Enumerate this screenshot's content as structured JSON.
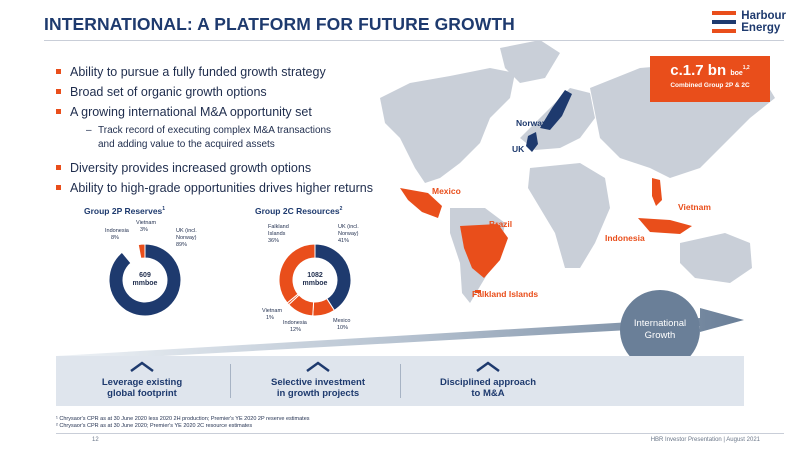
{
  "title": "INTERNATIONAL: A PLATFORM FOR FUTURE GROWTH",
  "logo": {
    "line1": "Harbour",
    "line2": "Energy"
  },
  "bullets": [
    "Ability to pursue a fully funded growth strategy",
    "Broad set of organic growth options",
    "A growing international M&A opportunity set",
    "Diversity provides increased growth options",
    "Ability to high-grade opportunities drives higher returns"
  ],
  "sub_bullet": {
    "dash": "–",
    "line1": "Track record of executing complex M&A transactions",
    "line2": "and adding value to the acquired assets"
  },
  "callout": {
    "value": "c.1.7 bn",
    "unit": "boe",
    "sup": "1,2",
    "caption": "Combined Group 2P & 2C"
  },
  "map_labels": {
    "norway": "Norway",
    "uk": "UK",
    "mexico": "Mexico",
    "brazil": "Brazil",
    "vietnam": "Vietnam",
    "indonesia": "Indonesia",
    "falklands": "Falkland Islands"
  },
  "colors": {
    "navy": "#1e3a6e",
    "orange": "#e94e1b",
    "map_grey": "#c9cfd8",
    "band": "#dfe5ed",
    "growth": "#6a7f98"
  },
  "chart_data": [
    {
      "type": "pie",
      "title": "Group 2P Reserves",
      "title_sup": "1",
      "center_value": "609",
      "center_unit": "mmboe",
      "slices": [
        {
          "label_line1": "UK (incl.",
          "label_line2": "Norway)",
          "pct_text": "89%",
          "value": 89,
          "color": "#1e3a6e"
        },
        {
          "label_line1": "Indonesia",
          "label_line2": "",
          "pct_text": "8%",
          "value": 8,
          "color": "#ffffff"
        },
        {
          "label_line1": "Vietnam",
          "label_line2": "",
          "pct_text": "3%",
          "value": 3,
          "color": "#e94e1b"
        }
      ]
    },
    {
      "type": "pie",
      "title": "Group 2C Resources",
      "title_sup": "2",
      "center_value": "1082",
      "center_unit": "mmboe",
      "slices": [
        {
          "label_line1": "UK (incl.",
          "label_line2": "Norway)",
          "pct_text": "41%",
          "value": 41,
          "color": "#1e3a6e"
        },
        {
          "label_line1": "Mexico",
          "label_line2": "",
          "pct_text": "10%",
          "value": 10,
          "color": "#e94e1b"
        },
        {
          "label_line1": "Indonesia",
          "label_line2": "",
          "pct_text": "12%",
          "value": 12,
          "color": "#e94e1b"
        },
        {
          "label_line1": "Vietnam",
          "label_line2": "",
          "pct_text": "1%",
          "value": 1,
          "color": "#e94e1b"
        },
        {
          "label_line1": "Falkland",
          "label_line2": "Islands",
          "pct_text": "36%",
          "value": 36,
          "color": "#e94e1b"
        }
      ]
    }
  ],
  "growth_circle": {
    "line1": "International",
    "line2": "Growth"
  },
  "pillars": [
    {
      "line1": "Leverage existing",
      "line2": "global footprint"
    },
    {
      "line1": "Selective investment",
      "line2": "in growth projects"
    },
    {
      "line1": "Disciplined approach",
      "line2": "to M&A"
    }
  ],
  "footnotes": [
    "¹ Chrysaor's CPR as at 30 June 2020 less 2020 2H production; Premier's YE 2020 2P reserve estimates",
    "² Chrysaor's CPR as at 30 June 2020; Premier's YE 2020 2C resource estimates"
  ],
  "page_number": "12",
  "footer_text": "HBR Investor Presentation | August 2021"
}
